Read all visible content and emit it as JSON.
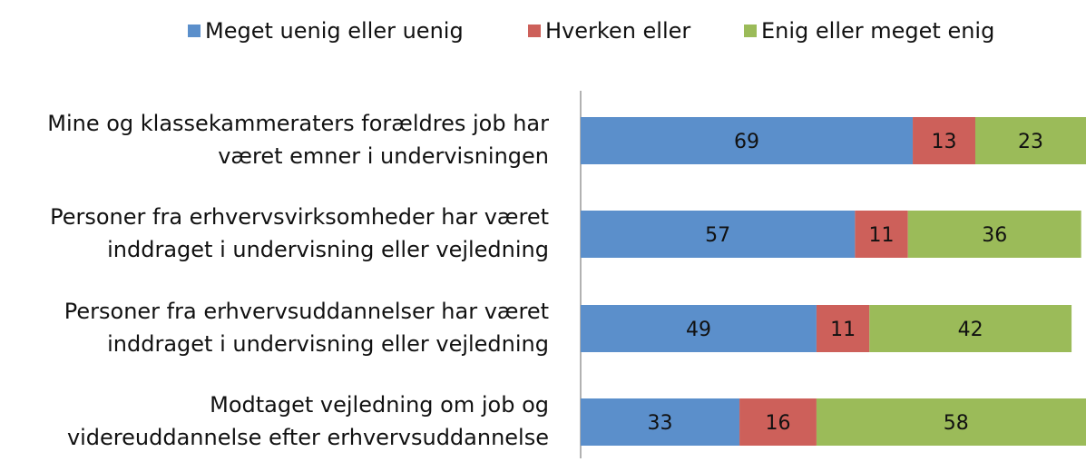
{
  "chart_data": {
    "type": "stacked-bar-horizontal",
    "categories": [
      "Mine og klassekammeraters forældres job har\nværet emner i undervisningen",
      "Personer fra erhvervsvirksomheder har været\ninddraget i undervisning eller vejledning",
      "Personer fra erhvervsuddannelser har været\ninddraget i undervisning eller vejledning",
      "Modtaget vejledning om job og\nvidereuddannelse efter erhvervsuddannelse"
    ],
    "series": [
      {
        "name": "Meget uenig eller uenig",
        "color": "#5b8fcb",
        "values": [
          69,
          57,
          49,
          33
        ]
      },
      {
        "name": "Hverken eller",
        "color": "#cd605a",
        "values": [
          13,
          11,
          11,
          16
        ]
      },
      {
        "name": "Enig eller meget enig",
        "color": "#9bbb59",
        "values": [
          23,
          36,
          42,
          58
        ]
      }
    ],
    "xlim": [
      0,
      105
    ],
    "legend": "top"
  }
}
